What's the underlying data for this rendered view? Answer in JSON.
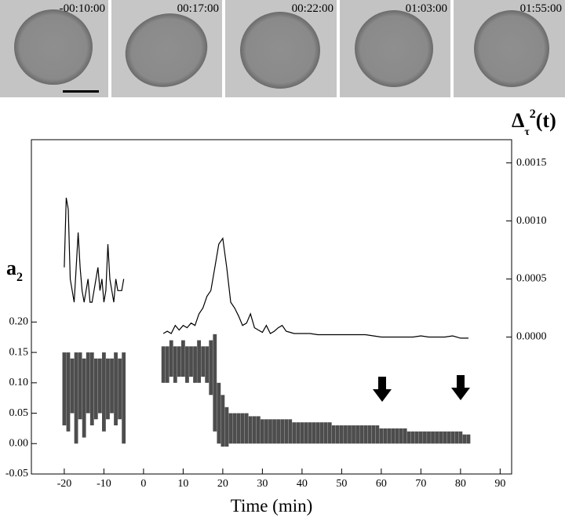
{
  "panel_labels": [
    "-00:10:00",
    "00:17:00",
    "00:22:00",
    "01:03:00",
    "01:55:00"
  ],
  "chart_data": {
    "type": "range-line",
    "xlabel": "Time (min)",
    "ylabel": {
      "main": "a",
      "sub": "2"
    },
    "y2label": {
      "main": "Δ",
      "sub": "τ",
      "sup": "2",
      "tail": "(t)"
    },
    "xlim": [
      -28.3,
      92.9
    ],
    "xticks": [
      -20,
      -10,
      0,
      10,
      20,
      30,
      40,
      50,
      60,
      70,
      80,
      90
    ],
    "ylim": [
      -0.05,
      0.5
    ],
    "yticks": [
      -0.05,
      {
        "value": 0,
        "label": "0.00"
      },
      0.05,
      {
        "value": 0.1,
        "label": "0.10"
      },
      0.15,
      {
        "value": 0.2,
        "label": "0.20"
      }
    ],
    "y2lim": [
      -0.00118,
      0.0017
    ],
    "y2ticks": [
      {
        "value": 0,
        "label": "0.0000"
      },
      0.0005,
      {
        "value": 0.001,
        "label": "0.0010"
      },
      0.0015
    ],
    "scatter": {
      "color": "#111111",
      "x": [
        -20,
        -19,
        -18,
        -17,
        -16,
        -15,
        -14,
        -13,
        -12,
        -11,
        -10,
        -9,
        -8,
        -7,
        -6,
        -5,
        5,
        6,
        7,
        8,
        9,
        10,
        11,
        12,
        13,
        14,
        15,
        16,
        17,
        18,
        19,
        20,
        21,
        22,
        23,
        24,
        25,
        26,
        27,
        28,
        29,
        30,
        31,
        32,
        33,
        34,
        35,
        36,
        37,
        38,
        39,
        40,
        41,
        42,
        43,
        44,
        45,
        46,
        47,
        48,
        49,
        50,
        51,
        52,
        53,
        54,
        55,
        56,
        57,
        58,
        59,
        60,
        61,
        62,
        63,
        64,
        65,
        66,
        67,
        68,
        69,
        70,
        71,
        72,
        73,
        74,
        75,
        76,
        77,
        78,
        79,
        80,
        81,
        82
      ],
      "low": [
        0.03,
        0.02,
        0.05,
        0.0,
        0.04,
        0.01,
        0.05,
        0.03,
        0.04,
        0.05,
        0.02,
        0.04,
        0.05,
        0.03,
        0.04,
        0.0,
        0.1,
        0.1,
        0.11,
        0.1,
        0.11,
        0.11,
        0.1,
        0.11,
        0.1,
        0.1,
        0.11,
        0.1,
        0.08,
        0.02,
        0.0,
        -0.005,
        -0.005,
        0.0,
        0.0,
        0.0,
        0.0,
        0.0,
        0.0,
        0.0,
        0.0,
        0.0,
        0.0,
        0.0,
        0.0,
        0.0,
        0.0,
        0.0,
        0.0,
        0.0,
        0.0,
        0.0,
        0.0,
        0.0,
        0.0,
        0.0,
        0.0,
        0.0,
        0.0,
        0.0,
        0.0,
        0.0,
        0.0,
        0.0,
        0.0,
        0.0,
        0.0,
        0.0,
        0.0,
        0.0,
        0.0,
        0.0,
        0.0,
        0.0,
        0.0,
        0.0,
        0.0,
        0.0,
        0.0,
        0.0,
        0.0,
        0.0,
        0.0,
        0.0,
        0.0,
        0.0,
        0.0,
        0.0,
        0.0,
        0.0,
        0.0,
        0.0,
        0.0,
        0.0
      ],
      "high": [
        0.15,
        0.15,
        0.14,
        0.15,
        0.15,
        0.14,
        0.15,
        0.15,
        0.14,
        0.14,
        0.15,
        0.14,
        0.14,
        0.15,
        0.14,
        0.15,
        0.16,
        0.16,
        0.17,
        0.16,
        0.16,
        0.17,
        0.16,
        0.16,
        0.16,
        0.17,
        0.16,
        0.16,
        0.17,
        0.18,
        0.1,
        0.08,
        0.06,
        0.05,
        0.05,
        0.05,
        0.05,
        0.05,
        0.045,
        0.045,
        0.045,
        0.04,
        0.04,
        0.04,
        0.04,
        0.04,
        0.04,
        0.04,
        0.04,
        0.035,
        0.035,
        0.035,
        0.035,
        0.035,
        0.035,
        0.035,
        0.035,
        0.035,
        0.035,
        0.03,
        0.03,
        0.03,
        0.03,
        0.03,
        0.03,
        0.03,
        0.03,
        0.03,
        0.03,
        0.03,
        0.03,
        0.025,
        0.025,
        0.025,
        0.025,
        0.025,
        0.025,
        0.025,
        0.02,
        0.02,
        0.02,
        0.02,
        0.02,
        0.02,
        0.02,
        0.02,
        0.02,
        0.02,
        0.02,
        0.02,
        0.02,
        0.02,
        0.015,
        0.015
      ]
    },
    "line": {
      "color": "#000000",
      "axis": "y2",
      "x": [
        -20,
        -19.5,
        -19,
        -18.5,
        -18,
        -17.5,
        -17,
        -16.5,
        -16,
        -15.5,
        -15,
        -14.5,
        -14,
        -13.5,
        -13,
        -12.5,
        -12,
        -11.5,
        -11,
        -10.5,
        -10,
        -9.5,
        -9,
        -8.5,
        -8,
        -7.5,
        -7,
        -6.5,
        -6,
        -5.5,
        -5,
        0,
        5,
        6,
        7,
        8,
        9,
        10,
        11,
        12,
        13,
        14,
        15,
        16,
        17,
        18,
        19,
        20,
        21,
        22,
        23,
        24,
        25,
        26,
        27,
        28,
        29,
        30,
        31,
        32,
        33,
        34,
        35,
        36,
        37,
        38,
        39,
        40,
        42,
        44,
        46,
        48,
        50,
        52,
        54,
        56,
        58,
        60,
        62,
        64,
        66,
        68,
        70,
        72,
        74,
        76,
        78,
        80,
        82
      ],
      "values": [
        0.0006,
        0.0012,
        0.0011,
        0.0005,
        0.0004,
        0.0003,
        0.0006,
        0.0009,
        0.0006,
        0.0004,
        0.0003,
        0.0004,
        0.0005,
        0.0003,
        0.0003,
        0.0004,
        0.0005,
        0.0006,
        0.0004,
        0.0005,
        0.0003,
        0.0004,
        0.0008,
        0.0005,
        0.0004,
        0.0003,
        0.0005,
        0.0004,
        0.0004,
        0.0004,
        0.0005,
        null,
        3e-05,
        5e-05,
        3e-05,
        0.0001,
        6e-05,
        0.0001,
        8e-05,
        0.00012,
        0.0001,
        0.0002,
        0.00025,
        0.00035,
        0.0004,
        0.0006,
        0.0008,
        0.00085,
        0.0006,
        0.0003,
        0.00025,
        0.00018,
        0.0001,
        0.00012,
        0.0002,
        8e-05,
        6e-05,
        4e-05,
        0.0001,
        3e-05,
        5e-05,
        8e-05,
        0.0001,
        5e-05,
        4e-05,
        3e-05,
        3e-05,
        3e-05,
        3e-05,
        2e-05,
        2e-05,
        2e-05,
        2e-05,
        2e-05,
        2e-05,
        2e-05,
        1e-05,
        0.0,
        0.0,
        0.0,
        0.0,
        0.0,
        1e-05,
        0.0,
        0.0,
        0.0,
        1e-05,
        -1e-05,
        -1e-05
      ]
    }
  }
}
